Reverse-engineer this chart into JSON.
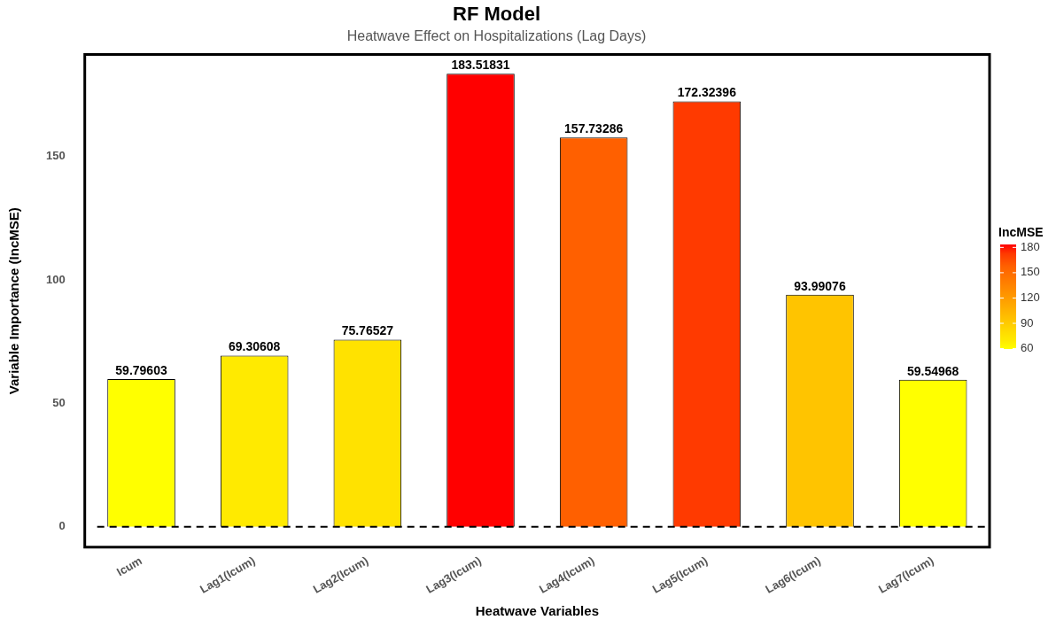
{
  "chart_data": {
    "type": "bar",
    "title": "RF Model",
    "subtitle": "Heatwave Effect on Hospitalizations (Lag Days)",
    "xlabel": "Heatwave Variables",
    "ylabel": "Variable Importance (IncMSE)",
    "clabel": "IncMSE",
    "categories": [
      "Icum",
      "Lag1(Icum)",
      "Lag2(Icum)",
      "Lag3(Icum)",
      "Lag4(Icum)",
      "Lag5(Icum)",
      "Lag6(Icum)",
      "Lag7(Icum)"
    ],
    "values": [
      59.79603,
      69.30608,
      75.76527,
      183.51831,
      157.73286,
      172.32396,
      93.99076,
      59.54968
    ],
    "colors": [
      "#ffff00",
      "#ffea00",
      "#ffe200",
      "#ff0000",
      "#ff6000",
      "#ff3a00",
      "#ffc400",
      "#ffff00"
    ],
    "data_labels": true,
    "ylim": [
      -8.3,
      191.3
    ],
    "yticks": [
      0,
      50,
      100,
      150
    ],
    "clim": [
      59.54968,
      183.51831
    ],
    "cticks": [
      60,
      90,
      120,
      150,
      180
    ],
    "ref_lines": [
      {
        "axis": "y",
        "value": 0,
        "line_style": "dashed",
        "color": "#000000"
      }
    ],
    "grid": false,
    "legend": false
  }
}
